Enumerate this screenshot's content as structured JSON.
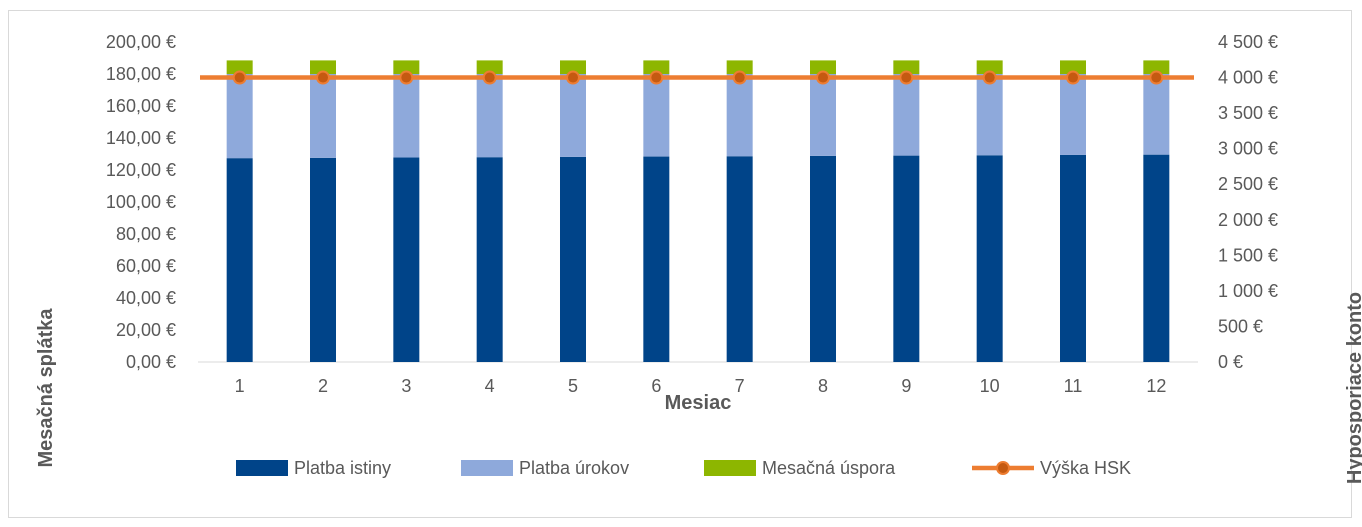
{
  "chart_data": {
    "type": "bar",
    "stacked": true,
    "categories": [
      "1",
      "2",
      "3",
      "4",
      "5",
      "6",
      "7",
      "8",
      "9",
      "10",
      "11",
      "12"
    ],
    "xlabel": "Mesiac",
    "ylabel": "Mesačná splátka",
    "y2label": "Hyposporiace konto",
    "ylim": [
      0,
      200
    ],
    "y2lim": [
      0,
      4500
    ],
    "y_ticks": [
      "0,00 €",
      "20,00 €",
      "40,00 €",
      "60,00 €",
      "80,00 €",
      "100,00 €",
      "120,00 €",
      "140,00 €",
      "160,00 €",
      "180,00 €",
      "200,00 €"
    ],
    "y2_ticks": [
      "0 €",
      "500 €",
      "1 000 €",
      "1 500 €",
      "2 000 €",
      "2 500 €",
      "3 000 €",
      "3 500 €",
      "4 000 €",
      "4 500 €"
    ],
    "series": [
      {
        "name": "Platba istiny",
        "kind": "bar",
        "axis": "left",
        "color": "#004489",
        "values": [
          127.4,
          127.6,
          127.8,
          128.0,
          128.2,
          128.4,
          128.6,
          128.8,
          129.0,
          129.2,
          129.4,
          129.6
        ]
      },
      {
        "name": "Platba úrokov",
        "kind": "bar",
        "axis": "left",
        "color": "#8EA9DB",
        "values": [
          52.6,
          52.4,
          52.2,
          52.0,
          51.8,
          51.6,
          51.4,
          51.2,
          51.0,
          50.8,
          50.6,
          50.4
        ]
      },
      {
        "name": "Mesačná úspora",
        "kind": "bar",
        "axis": "left",
        "color": "#8DB600",
        "values": [
          8.5,
          8.5,
          8.5,
          8.5,
          8.5,
          8.5,
          8.5,
          8.5,
          8.5,
          8.5,
          8.5,
          8.5
        ]
      },
      {
        "name": "Výška HSK",
        "kind": "line",
        "axis": "right",
        "color": "#ED7D31",
        "values": [
          4000,
          4000,
          4000,
          4000,
          4000,
          4000,
          4000,
          4000,
          4000,
          4000,
          4000,
          4000
        ]
      }
    ],
    "grid": false,
    "legend_position": "bottom"
  }
}
